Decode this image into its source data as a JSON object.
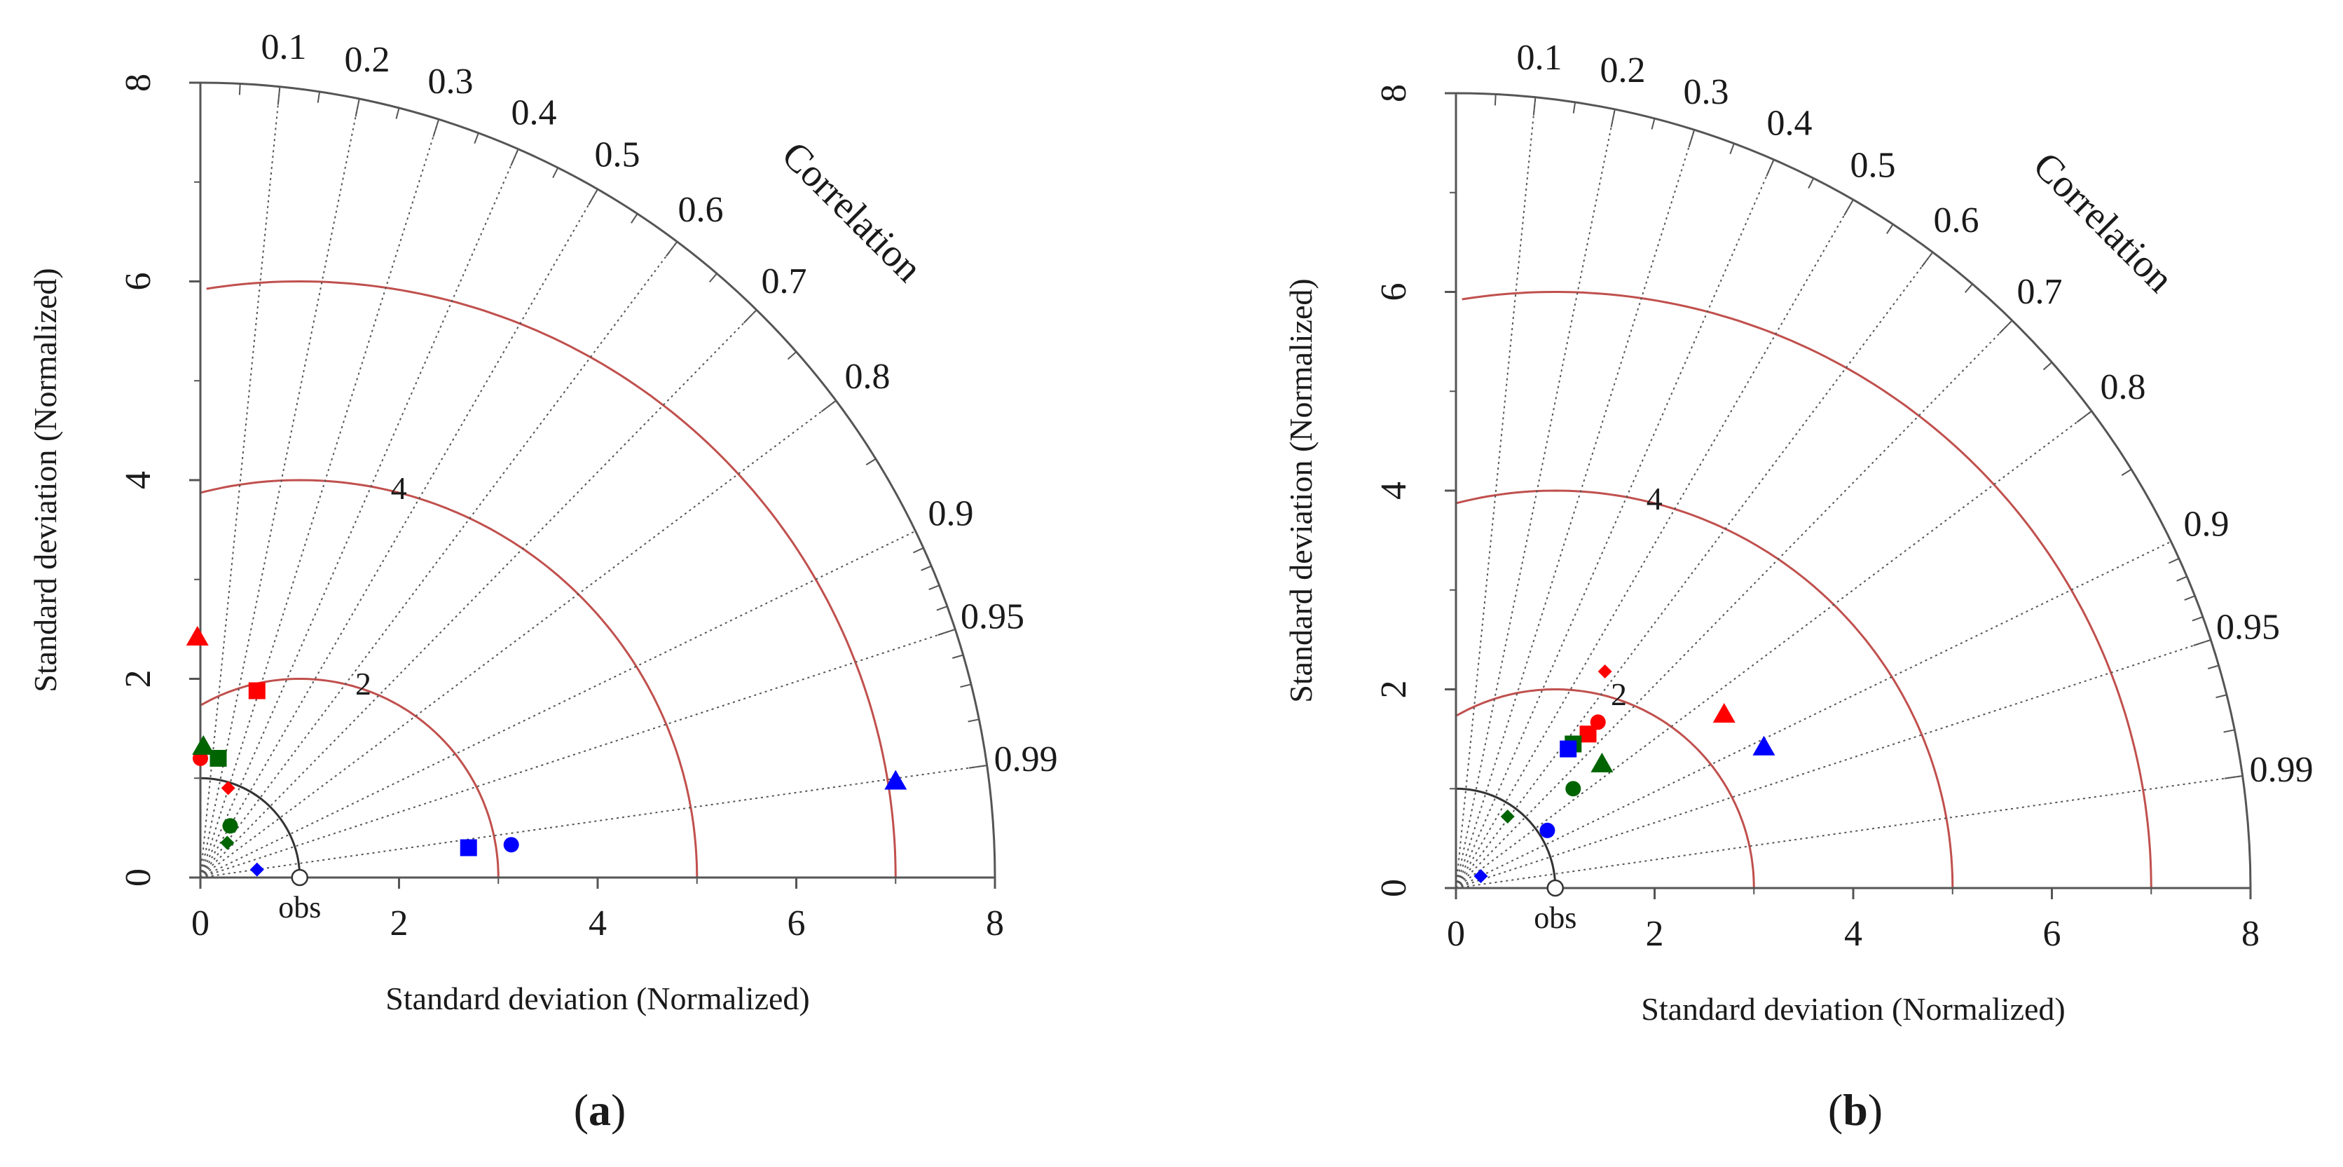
{
  "figure": {
    "background": "#ffffff",
    "axis_color": "#555555",
    "corr_line_color": "#555555",
    "rms_arc_color": "#c0504d",
    "ref_arc_color": "#333333"
  },
  "chart_data": [
    {
      "type": "scatter",
      "subtype": "taylor-diagram",
      "panel_label": "a",
      "xlabel": "Standard deviation (Normalized)",
      "ylabel": "Standard deviation (Normalized)",
      "correlation_label": "Correlation",
      "reference_label": "obs",
      "reference_std": 1,
      "std_range": [
        0,
        8
      ],
      "std_ticks": [
        0,
        2,
        4,
        6,
        8
      ],
      "correlation_ticks": [
        "0.1",
        "0.2",
        "0.3",
        "0.4",
        "0.5",
        "0.6",
        "0.7",
        "0.8",
        "0.9",
        "0.95",
        "0.99"
      ],
      "correlation_lines": [
        0.1,
        0.2,
        0.3,
        0.4,
        0.5,
        0.6,
        0.7,
        0.8,
        0.9,
        0.95,
        0.99
      ],
      "rms_arcs": [
        2,
        4,
        6
      ],
      "rms_arcs_labeled": [
        "2",
        "4"
      ],
      "points": [
        {
          "x": -0.03,
          "y": 2.42,
          "marker": "triangle",
          "color": "#ff0000"
        },
        {
          "x": 0.57,
          "y": 1.88,
          "marker": "square",
          "color": "#ff0000"
        },
        {
          "x": 0.0,
          "y": 1.2,
          "marker": "circle",
          "color": "#ff0000"
        },
        {
          "x": 0.28,
          "y": 0.9,
          "marker": "diamond",
          "color": "#ff0000"
        },
        {
          "x": 0.03,
          "y": 1.32,
          "marker": "triangle",
          "color": "#006400"
        },
        {
          "x": 0.18,
          "y": 1.2,
          "marker": "square",
          "color": "#006400"
        },
        {
          "x": 0.3,
          "y": 0.52,
          "marker": "circle",
          "color": "#006400"
        },
        {
          "x": 0.27,
          "y": 0.35,
          "marker": "diamond",
          "color": "#006400"
        },
        {
          "x": 7.0,
          "y": 0.97,
          "marker": "triangle",
          "color": "#0000ff"
        },
        {
          "x": 2.7,
          "y": 0.3,
          "marker": "square",
          "color": "#0000ff"
        },
        {
          "x": 3.13,
          "y": 0.33,
          "marker": "circle",
          "color": "#0000ff"
        },
        {
          "x": 0.57,
          "y": 0.08,
          "marker": "diamond",
          "color": "#0000ff"
        }
      ]
    },
    {
      "type": "scatter",
      "subtype": "taylor-diagram",
      "panel_label": "b",
      "xlabel": "Standard deviation (Normalized)",
      "ylabel": "Standard deviation (Normalized)",
      "correlation_label": "Correlation",
      "reference_label": "obs",
      "reference_std": 1,
      "std_range": [
        0,
        8
      ],
      "std_ticks": [
        0,
        2,
        4,
        6,
        8
      ],
      "correlation_ticks": [
        "0.1",
        "0.2",
        "0.3",
        "0.4",
        "0.5",
        "0.6",
        "0.7",
        "0.8",
        "0.9",
        "0.95",
        "0.99"
      ],
      "correlation_lines": [
        0.1,
        0.2,
        0.3,
        0.4,
        0.5,
        0.6,
        0.7,
        0.8,
        0.9,
        0.95,
        0.99
      ],
      "rms_arcs": [
        2,
        4,
        6
      ],
      "rms_arcs_labeled": [
        "2",
        "4"
      ],
      "points": [
        {
          "x": 2.7,
          "y": 1.75,
          "marker": "triangle",
          "color": "#ff0000"
        },
        {
          "x": 1.33,
          "y": 1.55,
          "marker": "square",
          "color": "#ff0000"
        },
        {
          "x": 1.43,
          "y": 1.67,
          "marker": "circle",
          "color": "#ff0000"
        },
        {
          "x": 1.5,
          "y": 2.18,
          "marker": "diamond",
          "color": "#ff0000"
        },
        {
          "x": 1.47,
          "y": 1.25,
          "marker": "triangle",
          "color": "#006400"
        },
        {
          "x": 1.18,
          "y": 1.45,
          "marker": "square",
          "color": "#006400"
        },
        {
          "x": 1.18,
          "y": 1.0,
          "marker": "circle",
          "color": "#006400"
        },
        {
          "x": 0.52,
          "y": 0.72,
          "marker": "diamond",
          "color": "#006400"
        },
        {
          "x": 3.1,
          "y": 1.42,
          "marker": "triangle",
          "color": "#0000ff"
        },
        {
          "x": 1.13,
          "y": 1.4,
          "marker": "square",
          "color": "#0000ff"
        },
        {
          "x": 0.92,
          "y": 0.58,
          "marker": "circle",
          "color": "#0000ff"
        },
        {
          "x": 0.25,
          "y": 0.12,
          "marker": "diamond",
          "color": "#0000ff"
        }
      ]
    }
  ]
}
